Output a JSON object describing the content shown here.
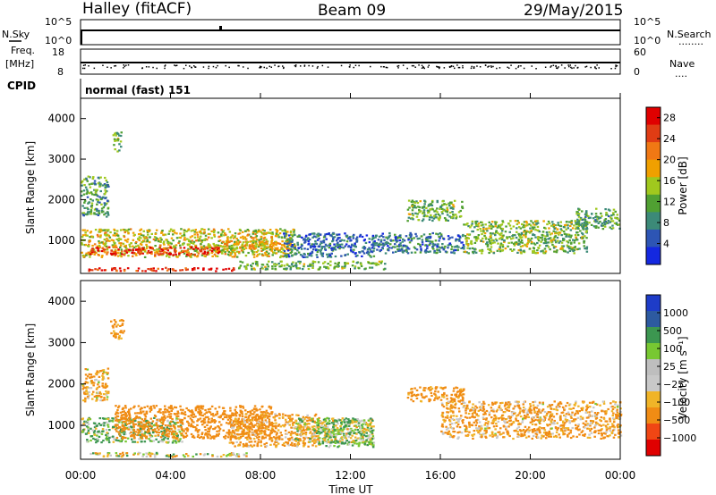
{
  "header": {
    "station": "Halley (fitACF)",
    "beam": "Beam 09",
    "date": "29/May/2015"
  },
  "sky_panel": {
    "left_label": "N.Sky",
    "left_ticks": [
      "10^5",
      "10^0"
    ],
    "right_ticks": [
      "10^5",
      "10^0"
    ],
    "right_label": "N.Search",
    "right_dots": "........"
  },
  "freq_panel": {
    "left_label_1": "Freq.",
    "left_label_2": "[MHz]",
    "left_ticks": [
      "18",
      "8"
    ],
    "right_ticks": [
      "60",
      "0"
    ],
    "right_label": "Nave",
    "right_dots": "....",
    "ylim": [
      8,
      18
    ]
  },
  "cpid": {
    "label": "CPID",
    "value": "normal (fast) 151"
  },
  "x_axis": {
    "label": "Time UT",
    "ticks": [
      "00:00",
      "04:00",
      "08:00",
      "12:00",
      "16:00",
      "20:00",
      "00:00"
    ],
    "range_hours": [
      0,
      24
    ]
  },
  "colors": {
    "power_scale": [
      "#1428e0",
      "#2d55b4",
      "#3c8a78",
      "#50a032",
      "#a0c81e",
      "#f0a000",
      "#f07814",
      "#e03c14",
      "#e00000"
    ],
    "velocity_scale": [
      "#e00000",
      "#f04614",
      "#f08c14",
      "#f0b428",
      "#c8c8c8",
      "#bebebe",
      "#78c832",
      "#3c9650",
      "#2d5aa0",
      "#1e3cc8"
    ]
  },
  "chart_data": [
    {
      "type": "heatmap",
      "title": "",
      "xlabel": "Time UT",
      "ylabel": "Slant Range [km]",
      "xlim": [
        0,
        24
      ],
      "ylim": [
        180,
        4500
      ],
      "y_ticks": [
        "1000",
        "2000",
        "3000",
        "4000"
      ],
      "colorbar": {
        "label": "Power [dB]",
        "ticks": [
          "4",
          "8",
          "12",
          "16",
          "20",
          "24",
          "28"
        ],
        "range": [
          0,
          30
        ]
      },
      "regions": [
        {
          "x": [
            0,
            9.5
          ],
          "y": [
            600,
            1300
          ],
          "level": 16
        },
        {
          "x": [
            0.3,
            6.2
          ],
          "y": [
            650,
            850
          ],
          "level": 26
        },
        {
          "x": [
            6.2,
            9.5
          ],
          "y": [
            800,
            1000
          ],
          "level": 18
        },
        {
          "x": [
            0.2,
            7.2
          ],
          "y": [
            260,
            340
          ],
          "level": 27
        },
        {
          "x": [
            7,
            13.5
          ],
          "y": [
            300,
            500
          ],
          "level": 12
        },
        {
          "x": [
            9,
            13
          ],
          "y": [
            600,
            1200
          ],
          "level": 6
        },
        {
          "x": [
            13,
            17
          ],
          "y": [
            700,
            1200
          ],
          "level": 7
        },
        {
          "x": [
            14.5,
            17
          ],
          "y": [
            1500,
            2000
          ],
          "level": 12
        },
        {
          "x": [
            17,
            22.5
          ],
          "y": [
            700,
            1500
          ],
          "level": 13
        },
        {
          "x": [
            22,
            24
          ],
          "y": [
            1300,
            1800
          ],
          "level": 11
        },
        {
          "x": [
            0,
            1.2
          ],
          "y": [
            1600,
            2600
          ],
          "level": 10
        },
        {
          "x": [
            1.4,
            1.8
          ],
          "y": [
            3200,
            3700
          ],
          "level": 12
        }
      ]
    },
    {
      "type": "heatmap",
      "title": "",
      "xlabel": "Time UT",
      "ylabel": "Slant Range [km]",
      "xlim": [
        0,
        24
      ],
      "ylim": [
        180,
        4500
      ],
      "y_ticks": [
        "1000",
        "2000",
        "3000",
        "4000"
      ],
      "colorbar": {
        "label": "Velocity [m s⁻¹]",
        "ticks": [
          "1000",
          "500",
          "100",
          "25",
          "−25",
          "−100",
          "−500",
          "−1000"
        ],
        "range": [
          -1000,
          1000
        ]
      },
      "regions": [
        {
          "x": [
            0,
            4.5
          ],
          "y": [
            600,
            1200
          ],
          "level": 80
        },
        {
          "x": [
            1.5,
            8.5
          ],
          "y": [
            700,
            1500
          ],
          "level": -300
        },
        {
          "x": [
            6.5,
            10.5
          ],
          "y": [
            500,
            1300
          ],
          "level": -150
        },
        {
          "x": [
            0.3,
            7.5
          ],
          "y": [
            260,
            360
          ],
          "level": -10
        },
        {
          "x": [
            9.5,
            13
          ],
          "y": [
            600,
            1200
          ],
          "level": 0
        },
        {
          "x": [
            10.5,
            13
          ],
          "y": [
            500,
            1200
          ],
          "level": 60
        },
        {
          "x": [
            14.5,
            17
          ],
          "y": [
            1600,
            1950
          ],
          "level": -200
        },
        {
          "x": [
            16,
            24
          ],
          "y": [
            700,
            1600
          ],
          "level": -120
        },
        {
          "x": [
            0,
            1.2
          ],
          "y": [
            1600,
            2400
          ],
          "level": -100
        },
        {
          "x": [
            1.3,
            1.9
          ],
          "y": [
            3100,
            3600
          ],
          "level": -200
        }
      ]
    }
  ]
}
